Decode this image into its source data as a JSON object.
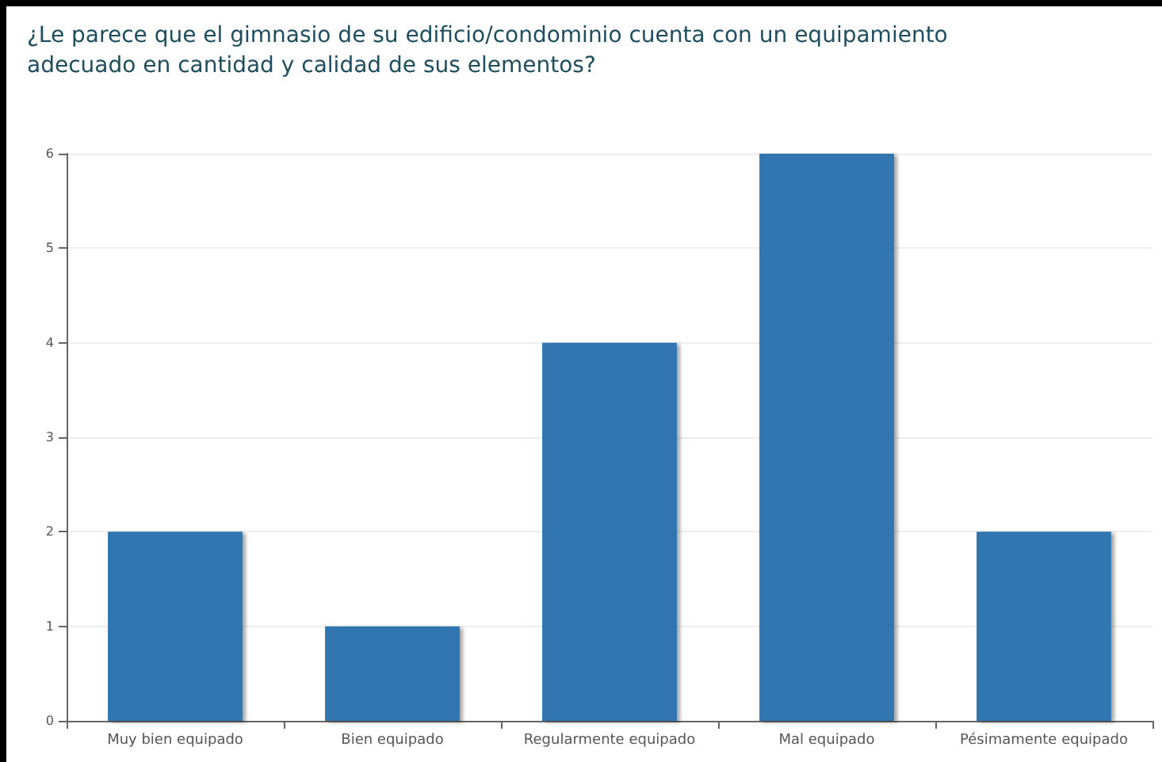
{
  "chart_data": {
    "type": "bar",
    "title": "¿Le parece que el gimnasio de su edificio/condominio cuenta con un equipamiento\nadecuado en cantidad y calidad de sus elementos?",
    "categories": [
      "Muy bien equipado",
      "Bien equipado",
      "Regularmente equipado",
      "Mal equipado",
      "Pésimamente equipado"
    ],
    "values": [
      2,
      1,
      4,
      6,
      2
    ],
    "color": "#3276b1",
    "ylim": [
      0,
      6
    ],
    "yticks": [
      0,
      1,
      2,
      3,
      4,
      5,
      6
    ],
    "grid": "y"
  }
}
